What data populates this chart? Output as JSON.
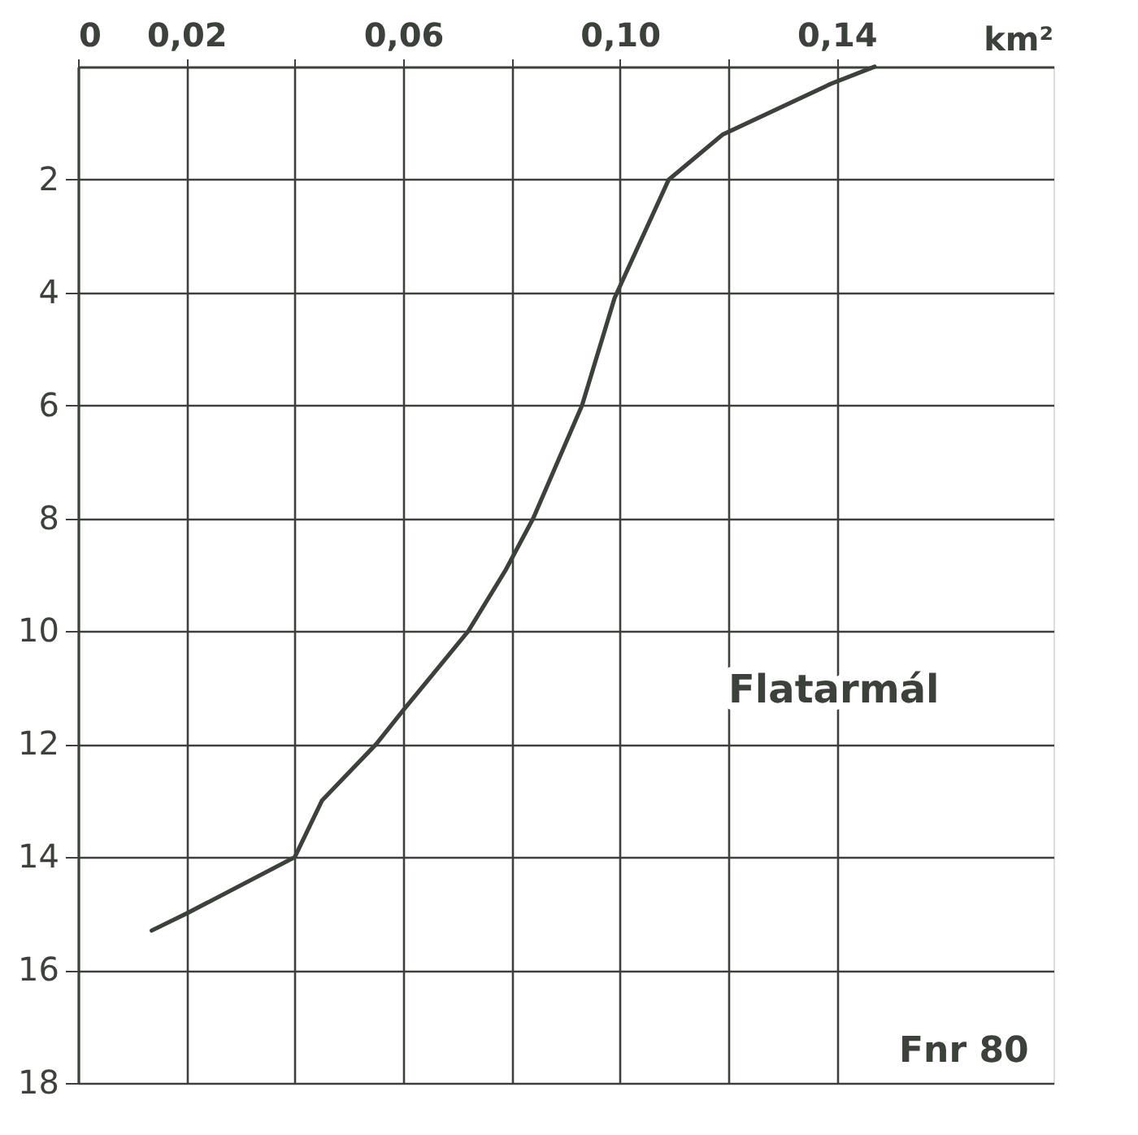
{
  "chart_data": {
    "type": "line",
    "xlabel": "km²",
    "x": [
      0.147,
      0.139,
      0.119,
      0.109,
      0.099,
      0.093,
      0.084,
      0.079,
      0.072,
      0.06,
      0.055,
      0.045,
      0.04,
      0.02,
      0.0136
    ],
    "series": [
      {
        "color": "#3c413c",
        "values": [
          0,
          0.3,
          1.2,
          2,
          4.1,
          6,
          8,
          8.9,
          10,
          11.4,
          12,
          13,
          14,
          15,
          15.3
        ]
      }
    ],
    "xlim": [
      0,
      0.18
    ],
    "xticks": [
      0,
      {
        "value": 0.02,
        "label": "0,02"
      },
      {
        "value": 0.04,
        "label": null
      },
      {
        "value": 0.06,
        "label": "0,06"
      },
      {
        "value": 0.08,
        "label": null
      },
      {
        "value": 0.1,
        "label": "0,10"
      },
      {
        "value": 0.12,
        "label": null
      },
      {
        "value": 0.14,
        "label": "0,14"
      }
    ],
    "ylim": [
      18,
      0
    ],
    "yticks": [
      2,
      4,
      6,
      8,
      10,
      12,
      14,
      16,
      18
    ],
    "grid": true,
    "line_style": "solid",
    "marker": "none",
    "annotations": [
      "Flatarmál",
      "Fnr 80"
    ]
  }
}
